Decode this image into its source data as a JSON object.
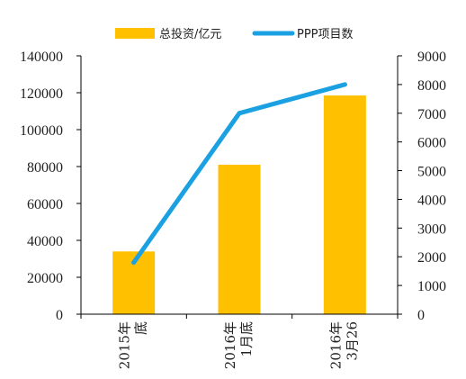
{
  "chart_data": {
    "type": "bar+line",
    "categories": [
      [
        "2015年",
        "底"
      ],
      [
        "2016年",
        "1月底"
      ],
      [
        "2016年",
        "3月26"
      ]
    ],
    "series": [
      {
        "name": "总投资/亿元",
        "type": "bar",
        "axis": "left",
        "color": "#FFC000",
        "values": [
          34000,
          81000,
          118500
        ]
      },
      {
        "name": "PPP项目数",
        "type": "line",
        "axis": "right",
        "color": "#1BA1E2",
        "values": [
          1800,
          7000,
          8000
        ]
      }
    ],
    "y_left": {
      "min": 0,
      "max": 140000,
      "step": 20000
    },
    "y_right": {
      "min": 0,
      "max": 9000,
      "step": 1000
    },
    "legend": "top-center",
    "grid": false
  }
}
